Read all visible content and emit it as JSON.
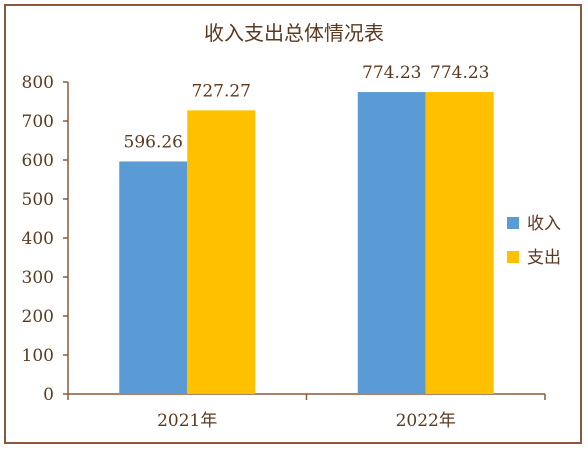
{
  "chart_data": {
    "type": "bar",
    "title": "收入支出总体情况表",
    "categories": [
      "2021年",
      "2022年"
    ],
    "series": [
      {
        "name": "收入",
        "values": [
          596.26,
          774.23
        ],
        "color": "#5B9BD5"
      },
      {
        "name": "支出",
        "values": [
          727.27,
          774.23
        ],
        "color": "#FFC000"
      }
    ],
    "value_labels": [
      [
        "596.26",
        "774.23"
      ],
      [
        "727.27",
        "774.23"
      ]
    ],
    "ylim": [
      0,
      800
    ],
    "yticks": [
      "0",
      "100",
      "200",
      "300",
      "400",
      "500",
      "600",
      "700",
      "800"
    ],
    "grid": false,
    "legend": "right"
  },
  "colors": {
    "axis": "#8B5A3C",
    "text": "#5C3A21",
    "border": "#8B5A3C"
  }
}
